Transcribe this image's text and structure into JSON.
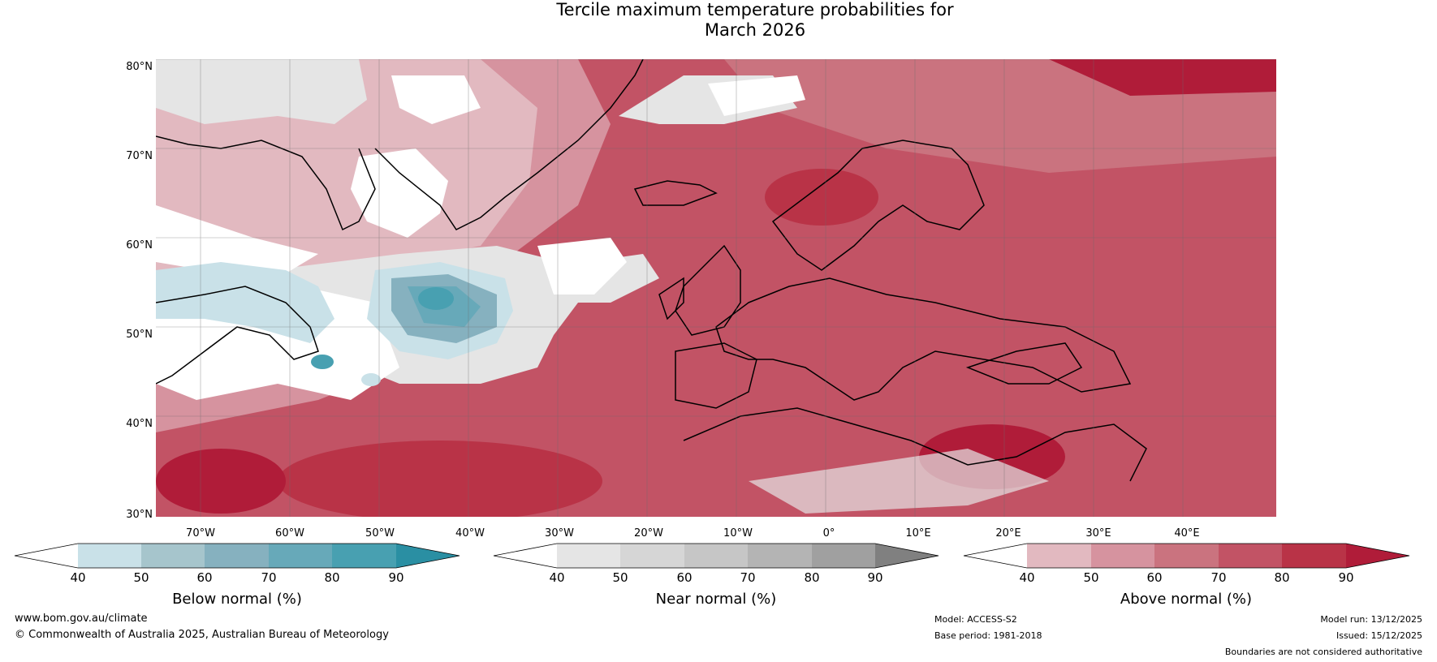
{
  "title_line1": "Tercile maximum temperature probabilities for",
  "title_line2": "March 2026",
  "lat_labels": [
    "80°N",
    "70°N",
    "60°N",
    "50°N",
    "40°N",
    "30°N"
  ],
  "lon_labels": [
    "70°W",
    "60°W",
    "50°W",
    "40°W",
    "30°W",
    "20°W",
    "10°W",
    "0°",
    "10°E",
    "20°E",
    "30°E",
    "40°E"
  ],
  "colorbars": [
    {
      "label": "Below normal (%)",
      "ticks": [
        "40",
        "50",
        "60",
        "70",
        "80",
        "90"
      ],
      "colors": [
        "#ffffff",
        "#c9e1e8",
        "#a6c5cc",
        "#86b1bf",
        "#67a9b9",
        "#48a0b1",
        "#2a8fa3"
      ]
    },
    {
      "label": "Near normal (%)",
      "ticks": [
        "40",
        "50",
        "60",
        "70",
        "80",
        "90"
      ],
      "colors": [
        "#ffffff",
        "#e5e5e5",
        "#d6d6d6",
        "#c6c6c6",
        "#b4b4b4",
        "#a0a0a0",
        "#808080"
      ]
    },
    {
      "label": "Above normal (%)",
      "ticks": [
        "40",
        "50",
        "60",
        "70",
        "80",
        "90"
      ],
      "colors": [
        "#ffffff",
        "#e2b9c0",
        "#d6939f",
        "#ca737f",
        "#c25365",
        "#b93347",
        "#b01c39"
      ]
    }
  ],
  "footer": {
    "website": "www.bom.gov.au/climate",
    "copyright": "© Commonwealth of Australia 2025, Australian Bureau of Meteorology",
    "model": "Model: ACCESS-S2",
    "base_period": "Base period: 1981-2018",
    "model_run": "Model run: 13/12/2025",
    "issued": "Issued: 15/12/2025",
    "disclaimer": "Boundaries are not considered authoritative"
  }
}
